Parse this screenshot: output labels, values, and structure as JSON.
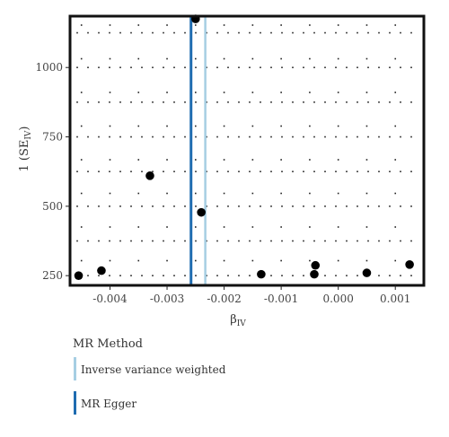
{
  "chart_data": {
    "type": "scatter",
    "title": "",
    "xlabel_main": "β",
    "xlabel_sub": "IV",
    "ylabel_main": "1 (SE",
    "ylabel_sub": "IV",
    "ylabel_tail": ")",
    "xlim": [
      -0.0047,
      0.0015
    ],
    "ylim": [
      215,
      1185
    ],
    "x_ticks": [
      -0.004,
      -0.003,
      -0.002,
      -0.001,
      0.0,
      0.001
    ],
    "x_tick_labels": [
      "-0.004",
      "-0.003",
      "-0.002",
      "-0.001",
      "0.000",
      "0.001"
    ],
    "y_ticks": [
      250,
      500,
      750,
      1000
    ],
    "y_tick_labels": [
      "250",
      "500",
      "750",
      "1000"
    ],
    "grid": "dotted",
    "points": [
      {
        "x": -0.00455,
        "y": 250
      },
      {
        "x": -0.00415,
        "y": 268
      },
      {
        "x": -0.0033,
        "y": 610
      },
      {
        "x": -0.0025,
        "y": 1175
      },
      {
        "x": -0.0024,
        "y": 478
      },
      {
        "x": -0.00135,
        "y": 255
      },
      {
        "x": -0.0004,
        "y": 287
      },
      {
        "x": -0.00042,
        "y": 255
      },
      {
        "x": 0.0005,
        "y": 260
      },
      {
        "x": 0.00125,
        "y": 290
      }
    ],
    "lines": [
      {
        "name": "Inverse variance weighted",
        "x": -0.00233,
        "color": "#a6cee3"
      },
      {
        "name": "MR Egger",
        "x": -0.00258,
        "color": "#1f6cb0"
      }
    ],
    "legend_title": "MR Method",
    "legend_position": "bottom-left"
  }
}
